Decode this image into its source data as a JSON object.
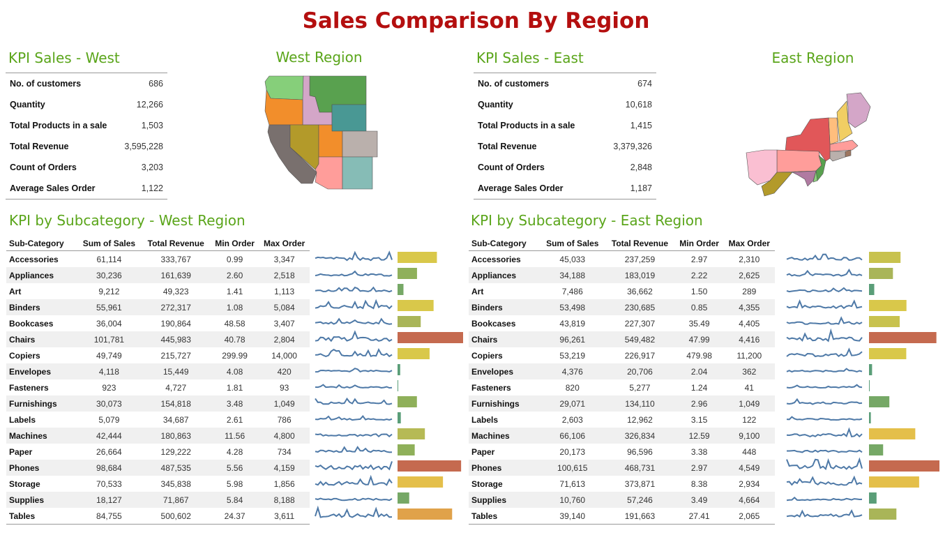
{
  "page_title": "Sales Comparison By Region",
  "west": {
    "kpi_title": "KPI Sales - West",
    "region_title": "West Region",
    "kpis": [
      {
        "label": "No. of customers",
        "value": "686"
      },
      {
        "label": "Quantity",
        "value": "12,266"
      },
      {
        "label": "Total Products in a sale",
        "value": "1,503"
      },
      {
        "label": "Total Revenue",
        "value": "3,595,228"
      },
      {
        "label": "Count of Orders",
        "value": "3,203"
      },
      {
        "label": "Average Sales Order",
        "value": "1,122"
      }
    ],
    "sub_title": "KPI by Subcategory - West Region",
    "columns": [
      "Sub-Category",
      "Sum of Sales",
      "Total Revenue",
      "Min Order",
      "Max Order"
    ],
    "rows": [
      [
        "Accessories",
        "61,114",
        "333,767",
        "0.99",
        "3,347"
      ],
      [
        "Appliances",
        "30,236",
        "161,639",
        "2.60",
        "2,518"
      ],
      [
        "Art",
        "9,212",
        "49,323",
        "1.41",
        "1,113"
      ],
      [
        "Binders",
        "55,961",
        "272,317",
        "1.08",
        "5,084"
      ],
      [
        "Bookcases",
        "36,004",
        "190,864",
        "48.58",
        "3,407"
      ],
      [
        "Chairs",
        "101,781",
        "445,983",
        "40.78",
        "2,804"
      ],
      [
        "Copiers",
        "49,749",
        "215,727",
        "299.99",
        "14,000"
      ],
      [
        "Envelopes",
        "4,118",
        "15,449",
        "4.08",
        "420"
      ],
      [
        "Fasteners",
        "923",
        "4,727",
        "1.81",
        "93"
      ],
      [
        "Furnishings",
        "30,073",
        "154,818",
        "3.48",
        "1,049"
      ],
      [
        "Labels",
        "5,079",
        "34,687",
        "2.61",
        "786"
      ],
      [
        "Machines",
        "42,444",
        "180,863",
        "11.56",
        "4,800"
      ],
      [
        "Paper",
        "26,664",
        "129,222",
        "4.28",
        "734"
      ],
      [
        "Phones",
        "98,684",
        "487,535",
        "5.56",
        "4,159"
      ],
      [
        "Storage",
        "70,533",
        "345,838",
        "5.98",
        "1,856"
      ],
      [
        "Supplies",
        "18,127",
        "71,867",
        "5.84",
        "8,188"
      ],
      [
        "Tables",
        "84,755",
        "500,602",
        "24.37",
        "3,611"
      ]
    ],
    "bar_values": [
      61114,
      30236,
      9212,
      55961,
      36004,
      101781,
      49749,
      4118,
      923,
      30073,
      5079,
      42444,
      26664,
      98684,
      70533,
      18127,
      84755
    ],
    "bar_colors": [
      "#d9c84a",
      "#8fb05a",
      "#76a866",
      "#d9c84a",
      "#a9b558",
      "#c56a4f",
      "#d9c84a",
      "#5a9e78",
      "#5a9e78",
      "#8fb05a",
      "#5a9e78",
      "#b6ba55",
      "#8fb05a",
      "#c56a4f",
      "#e4bf4a",
      "#76a866",
      "#e0a24a"
    ]
  },
  "east": {
    "kpi_title": "KPI Sales - East",
    "region_title": "East Region",
    "kpis": [
      {
        "label": "No. of customers",
        "value": "674"
      },
      {
        "label": "Quantity",
        "value": "10,618"
      },
      {
        "label": "Total Products in a sale",
        "value": "1,415"
      },
      {
        "label": "Total Revenue",
        "value": "3,379,326"
      },
      {
        "label": "Count of Orders",
        "value": "2,848"
      },
      {
        "label": "Average Sales Order",
        "value": "1,187"
      }
    ],
    "sub_title": "KPI by Subcategory - East Region",
    "columns": [
      "Sub-Category",
      "Sum of Sales",
      "Total Revenue",
      "Min Order",
      "Max Order"
    ],
    "rows": [
      [
        "Accessories",
        "45,033",
        "237,259",
        "2.97",
        "2,310"
      ],
      [
        "Appliances",
        "34,188",
        "183,019",
        "2.22",
        "2,625"
      ],
      [
        "Art",
        "7,486",
        "36,662",
        "1.50",
        "289"
      ],
      [
        "Binders",
        "53,498",
        "230,685",
        "0.85",
        "4,355"
      ],
      [
        "Bookcases",
        "43,819",
        "227,307",
        "35.49",
        "4,405"
      ],
      [
        "Chairs",
        "96,261",
        "549,482",
        "47.99",
        "4,416"
      ],
      [
        "Copiers",
        "53,219",
        "226,917",
        "479.98",
        "11,200"
      ],
      [
        "Envelopes",
        "4,376",
        "20,706",
        "2.04",
        "362"
      ],
      [
        "Fasteners",
        "820",
        "5,277",
        "1.24",
        "41"
      ],
      [
        "Furnishings",
        "29,071",
        "134,110",
        "2.96",
        "1,049"
      ],
      [
        "Labels",
        "2,603",
        "12,962",
        "3.15",
        "122"
      ],
      [
        "Machines",
        "66,106",
        "326,834",
        "12.59",
        "9,100"
      ],
      [
        "Paper",
        "20,173",
        "96,596",
        "3.38",
        "448"
      ],
      [
        "Phones",
        "100,615",
        "468,731",
        "2.97",
        "4,549"
      ],
      [
        "Storage",
        "71,613",
        "373,871",
        "8.38",
        "2,934"
      ],
      [
        "Supplies",
        "10,760",
        "57,246",
        "3.49",
        "4,664"
      ],
      [
        "Tables",
        "39,140",
        "191,663",
        "27.41",
        "2,065"
      ]
    ],
    "bar_values": [
      45033,
      34188,
      7486,
      53498,
      43819,
      96261,
      53219,
      4376,
      820,
      29071,
      2603,
      66106,
      20173,
      100615,
      71613,
      10760,
      39140
    ],
    "bar_colors": [
      "#c8c24e",
      "#a9b558",
      "#5a9e78",
      "#d9c84a",
      "#c8c24e",
      "#c56a4f",
      "#d9c84a",
      "#5a9e78",
      "#5a9e78",
      "#76a866",
      "#5a9e78",
      "#e4bf4a",
      "#76a866",
      "#c56a4f",
      "#e4bf4a",
      "#5a9e78",
      "#a9b558"
    ]
  },
  "colors": {
    "title": "#b40f0f",
    "section_title": "#5aa51a",
    "sparkline": "#4e79a7"
  }
}
